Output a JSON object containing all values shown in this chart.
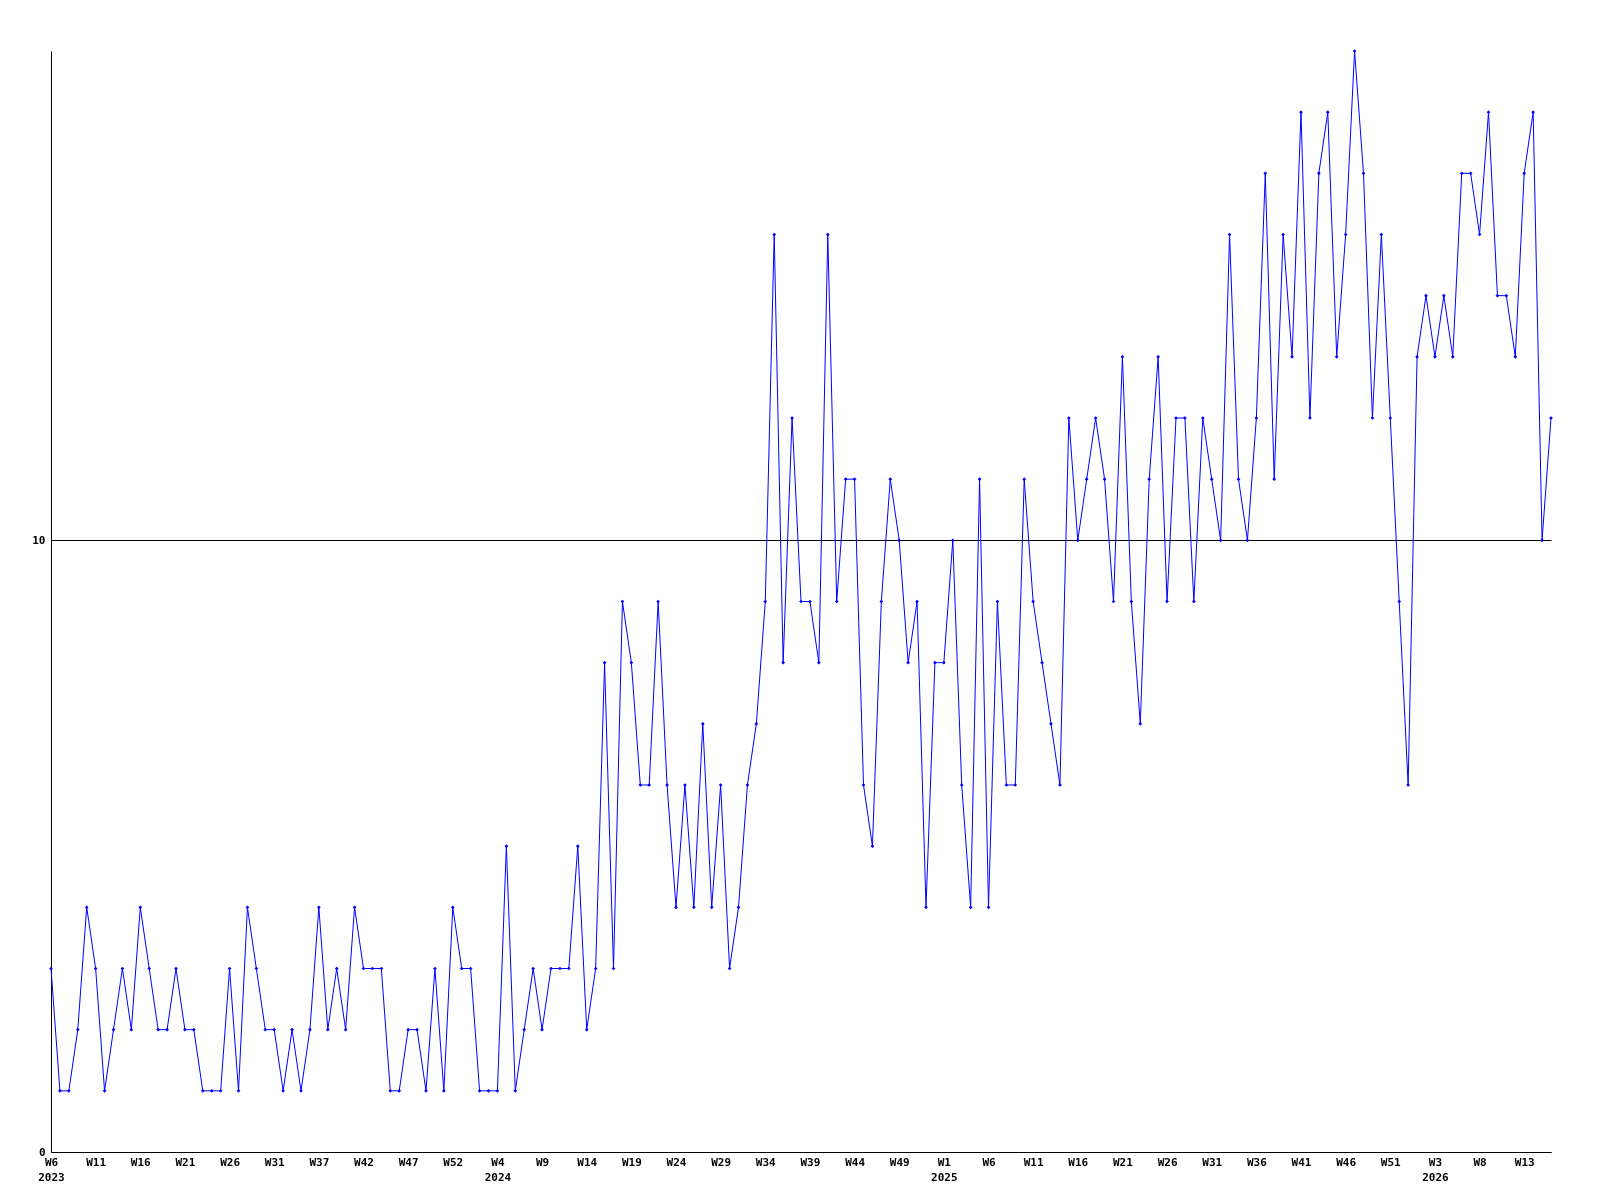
{
  "chart_data": {
    "type": "line",
    "categories": [
      "W6\n2023",
      null,
      null,
      null,
      null,
      "W11",
      null,
      null,
      null,
      null,
      "W16",
      null,
      null,
      null,
      null,
      "W21",
      null,
      null,
      null,
      null,
      "W26",
      null,
      null,
      null,
      null,
      "W31",
      null,
      null,
      null,
      null,
      "W37",
      null,
      null,
      null,
      null,
      "W42",
      null,
      null,
      null,
      null,
      "W47",
      null,
      null,
      null,
      null,
      "W52",
      null,
      null,
      null,
      null,
      "W4\n2024",
      null,
      null,
      null,
      null,
      "W9",
      null,
      null,
      null,
      null,
      "W14",
      null,
      null,
      null,
      null,
      "W19",
      null,
      null,
      null,
      null,
      "W24",
      null,
      null,
      null,
      null,
      "W29",
      null,
      null,
      null,
      null,
      "W34",
      null,
      null,
      null,
      null,
      "W39",
      null,
      null,
      null,
      null,
      "W44",
      null,
      null,
      null,
      null,
      "W49",
      null,
      null,
      null,
      null,
      "W1\n2025",
      null,
      null,
      null,
      null,
      "W6",
      null,
      null,
      null,
      null,
      "W11",
      null,
      null,
      null,
      null,
      "W16",
      null,
      null,
      null,
      null,
      "W21",
      null,
      null,
      null,
      null,
      "W26",
      null,
      null,
      null,
      null,
      "W31",
      null,
      null,
      null,
      null,
      "W36",
      null,
      null,
      null,
      null,
      "W41",
      null,
      null,
      null,
      null,
      "W46",
      null,
      null,
      null,
      null,
      "W51",
      null,
      null,
      null,
      null,
      "W3\n2026",
      null,
      null,
      null,
      null,
      "W8",
      null,
      null,
      null,
      null,
      "W13",
      null,
      null,
      null
    ],
    "series": [
      {
        "color": "#0000ff",
        "values": [
          3,
          1,
          1,
          2,
          4,
          3,
          1,
          2,
          3,
          2,
          4,
          3,
          2,
          2,
          3,
          2,
          2,
          1,
          1,
          1,
          3,
          1,
          4,
          3,
          2,
          2,
          1,
          2,
          1,
          2,
          4,
          2,
          3,
          2,
          4,
          3,
          3,
          3,
          1,
          1,
          2,
          2,
          1,
          3,
          1,
          4,
          3,
          3,
          1,
          1,
          1,
          5,
          1,
          2,
          3,
          2,
          3,
          3,
          3,
          5,
          2,
          3,
          8,
          3,
          9,
          8,
          6,
          6,
          9,
          6,
          4,
          6,
          4,
          7,
          4,
          6,
          3,
          4,
          6,
          7,
          9,
          15,
          8,
          12,
          9,
          9,
          8,
          15,
          9,
          11,
          11,
          6,
          5,
          9,
          11,
          10,
          8,
          9,
          4,
          8,
          8,
          10,
          6,
          4,
          11,
          4,
          9,
          6,
          6,
          11,
          9,
          8,
          7,
          6,
          12,
          10,
          11,
          12,
          11,
          9,
          13,
          9,
          7,
          11,
          13,
          9,
          12,
          12,
          9,
          12,
          11,
          10,
          15,
          11,
          10,
          12,
          16,
          11,
          15,
          13,
          17,
          12,
          16,
          17,
          13,
          15,
          18,
          16,
          12,
          15,
          12,
          9,
          6,
          13,
          14,
          13,
          14,
          13,
          16,
          16,
          15,
          17,
          14,
          14,
          13,
          16,
          17,
          10,
          12
        ]
      }
    ],
    "ylim": [
      0,
      18
    ],
    "yticks": [
      0,
      10
    ],
    "grid": "y",
    "marker": "diamond",
    "line_style": "solid"
  }
}
